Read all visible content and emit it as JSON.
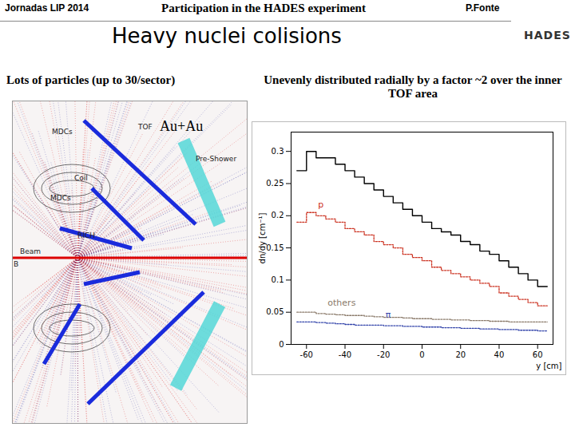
{
  "slide": {
    "header_left": "Jornadas LIP 2014",
    "header_center": "Participation in the HADES experiment",
    "header_right": "P.Fonte",
    "logo": "HADES",
    "title": "Heavy nuclei colisions",
    "left_caption": "Lots of particles (up to 30/sector)",
    "right_caption": "Unevenly distributed radially by a factor ~2 over the inner TOF area",
    "event_display": {
      "label": "Au+Au",
      "detectors": [
        "MDCs",
        "TOF",
        "Pre-Shower",
        "Coil",
        "MDCs",
        "RICH",
        "Beam",
        "B"
      ]
    }
  },
  "chart_data": {
    "type": "histogram",
    "x_label": "y [cm]",
    "y_label": "dn/dy [cm⁻¹]",
    "bins": [
      -65,
      -60,
      -55,
      -50,
      -45,
      -40,
      -35,
      -30,
      -25,
      -20,
      -15,
      -10,
      -5,
      0,
      5,
      10,
      15,
      20,
      25,
      30,
      35,
      40,
      45,
      50,
      55,
      60,
      65
    ],
    "series": [
      {
        "name": null,
        "color": "#000000",
        "values": [
          0.27,
          0.3,
          0.29,
          0.29,
          0.28,
          0.27,
          0.26,
          0.25,
          0.24,
          0.23,
          0.22,
          0.21,
          0.2,
          0.19,
          0.18,
          0.175,
          0.17,
          0.16,
          0.155,
          0.145,
          0.14,
          0.13,
          0.12,
          0.11,
          0.1,
          0.09
        ]
      },
      {
        "name": "p",
        "color": "#cc3322",
        "line_style": "dotted",
        "values": [
          0.19,
          0.205,
          0.2,
          0.195,
          0.19,
          0.18,
          0.175,
          0.17,
          0.16,
          0.155,
          0.15,
          0.14,
          0.135,
          0.13,
          0.12,
          0.115,
          0.11,
          0.105,
          0.1,
          0.095,
          0.09,
          0.08,
          0.075,
          0.07,
          0.065,
          0.06
        ]
      },
      {
        "name": "others",
        "color": "#8a7a6a",
        "line_style": "dotted",
        "values": [
          0.05,
          0.05,
          0.048,
          0.047,
          0.046,
          0.045,
          0.045,
          0.044,
          0.043,
          0.042,
          0.042,
          0.041,
          0.04,
          0.04,
          0.039,
          0.039,
          0.038,
          0.038,
          0.037,
          0.037,
          0.036,
          0.036,
          0.035,
          0.035,
          0.035,
          0.035
        ]
      },
      {
        "name": "π",
        "color": "#3344aa",
        "line_style": "dotted",
        "values": [
          0.035,
          0.035,
          0.034,
          0.033,
          0.032,
          0.031,
          0.03,
          0.03,
          0.03,
          0.029,
          0.029,
          0.028,
          0.028,
          0.027,
          0.027,
          0.026,
          0.026,
          0.025,
          0.025,
          0.024,
          0.024,
          0.023,
          0.023,
          0.022,
          0.022,
          0.021
        ]
      }
    ],
    "xlim": [
      -68,
      68
    ],
    "ylim": [
      0,
      0.33
    ],
    "xticks": [
      -60,
      -40,
      -20,
      0,
      20,
      40,
      60
    ],
    "yticks": [
      0,
      0.05,
      0.1,
      0.15,
      0.2,
      0.25,
      0.3
    ],
    "legend": false,
    "grid": false
  }
}
